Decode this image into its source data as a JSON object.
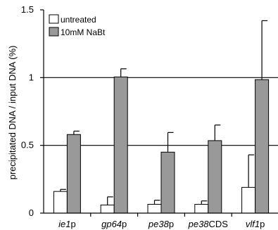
{
  "chart_data": {
    "type": "bar",
    "ylabel": "precipitated DNA / input DNA (%)",
    "ylim": [
      0,
      1.5
    ],
    "yticks": [
      "0",
      "0.5",
      "1",
      "1.5"
    ],
    "gridlines": [
      0.5,
      1.0
    ],
    "grid": "horizontal at 0.5 and 1",
    "legend_position": "top-left",
    "categories": [
      {
        "italic": "ie1",
        "suffix": "p"
      },
      {
        "italic": "gp64",
        "suffix": "p"
      },
      {
        "italic": "pe38",
        "suffix": "p"
      },
      {
        "italic": "pe38",
        "suffix": "CDS"
      },
      {
        "italic": "vlf1",
        "suffix": "p"
      }
    ],
    "series": [
      {
        "name": "untreated",
        "color": "#ffffff",
        "values": [
          0.16,
          0.06,
          0.065,
          0.065,
          0.19
        ],
        "errors": [
          0.015,
          0.06,
          0.03,
          0.025,
          0.24
        ]
      },
      {
        "name": "10mM NaBt",
        "color": "#999999",
        "values": [
          0.58,
          1.005,
          0.45,
          0.535,
          0.985
        ],
        "errors": [
          0.025,
          0.06,
          0.145,
          0.115,
          0.435
        ]
      }
    ]
  }
}
